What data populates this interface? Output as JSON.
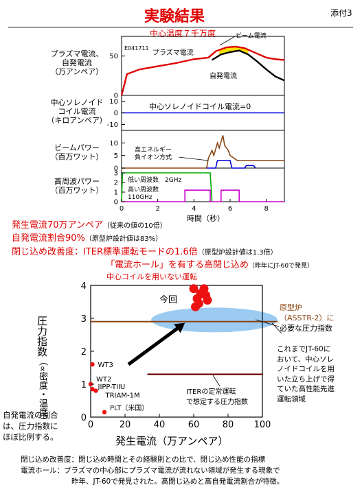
{
  "page": {
    "title": "実験結果",
    "attachment": "添付3"
  },
  "top_figure": {
    "header": "中心温度７千万度",
    "shot_id": "E041711",
    "panel1_ylabel": [
      "プラズマ電流、",
      "自発電流",
      "（万アンペア）"
    ],
    "panel1_curve_labels": {
      "plasma": "プラズマ電流",
      "beam": "ビーム電流",
      "bootstrap": "自発電流"
    },
    "panel2_ylabel": [
      "中心ソレノイド",
      "コイル電流",
      "（キロアンペア）"
    ],
    "panel2_text": "中心ソレノイドコイル電流=0",
    "panel3_ylabel": [
      "ビームパワー",
      "（百万ワット）"
    ],
    "panel3_labels": [
      "高エネルギー",
      "負イオン方式"
    ],
    "panel4_ylabel": [
      "高周波パワー",
      "（百万ワット）"
    ],
    "panel4_labels": [
      "低い周波数　2GHz",
      "高い周波数",
      "110GHz"
    ],
    "xlabel": "時間（秒）",
    "chart_data": {
      "type": "line",
      "x_ticks": [
        0,
        2,
        4,
        6,
        8
      ],
      "xlim": [
        0,
        9
      ],
      "panels": [
        {
          "name": "プラズマ電流、自発電流",
          "yticks": [
            0,
            50
          ],
          "ylim": [
            0,
            75
          ],
          "series": [
            {
              "name": "プラズマ電流",
              "color": "#e00000",
              "x": [
                0,
                0.3,
                1,
                2,
                3,
                4,
                4.8,
                5.2,
                5.8,
                6.3,
                6.8,
                7.4,
                8,
                8.5,
                9
              ],
              "y": [
                0,
                27,
                33,
                37,
                41,
                46,
                48,
                56,
                61,
                62,
                60,
                54,
                48,
                46,
                45
              ]
            },
            {
              "name": "自発電流",
              "color": "#000000",
              "x": [
                5,
                5.5,
                6,
                6.5,
                7,
                7.5,
                8,
                8.5,
                9
              ],
              "y": [
                45,
                52,
                55,
                57,
                52,
                43,
                33,
                24,
                19
              ]
            }
          ]
        },
        {
          "name": "中心ソレノイドコイル電流",
          "yticks": [
            -10,
            0,
            10
          ],
          "ylim": [
            -15,
            15
          ],
          "series": [
            {
              "name": "中心ソレノイドコイル電流",
              "color": "#0000dd",
              "x": [
                0,
                9
              ],
              "y": [
                0,
                0
              ]
            }
          ]
        },
        {
          "name": "ビームパワー",
          "yticks": [
            0,
            5,
            10
          ],
          "ylim": [
            0,
            15
          ],
          "series": [
            {
              "name": "ビームパワー",
              "color": "#8b4513",
              "x": [
                0,
                4.7,
                4.8,
                5.0,
                5.1,
                5.3,
                5.4,
                5.6,
                5.7,
                5.9,
                6.0,
                6.2,
                6.4,
                6.6,
                9
              ],
              "y": [
                0,
                0,
                4,
                7,
                5,
                10,
                8,
                13,
                9,
                7,
                5,
                4,
                3,
                3,
                3
              ]
            },
            {
              "name": "負イオン方式",
              "color": "#0000dd",
              "x": [
                4.7,
                5.2,
                5.3,
                6.0,
                6.1,
                6.8,
                6.9,
                7.3,
                7.4
              ],
              "y": [
                0,
                0,
                3,
                3,
                0,
                0,
                1,
                1,
                0
              ]
            }
          ]
        },
        {
          "name": "高周波パワー",
          "yticks": [
            0,
            1,
            2,
            3
          ],
          "ylim": [
            0,
            3.5
          ],
          "series": [
            {
              "name": "低い周波数 2GHz",
              "color": "#00aa00",
              "x": [
                0,
                0.05,
                4.9,
                5.0
              ],
              "y": [
                0,
                3,
                3,
                0
              ]
            },
            {
              "name": "高い周波数 110GHz",
              "color": "#cc00cc",
              "x": [
                0,
                3.5,
                3.5,
                4.9,
                4.9,
                5.5,
                5.5,
                6.5,
                6.5,
                9
              ],
              "y": [
                0,
                0,
                1.2,
                1.2,
                0,
                0,
                1.2,
                1.2,
                0,
                0
              ]
            }
          ]
        }
      ]
    }
  },
  "summary": {
    "line1_main": "発生電流70万アンペア",
    "line1_note": "（従来の値の10倍）",
    "line2_main": "自発電流割合90%",
    "line2_note": "（原型炉設計値は83%）",
    "line3_main": "閉じ込め改善度：ITER標準運転モードの1.6倍",
    "line3_note": "（原型炉設計値は1.3倍）",
    "line4_main": "「電流ホール」を有する高閉じ込め",
    "line4_note": "（昨年にJT-60で発見）",
    "line5": "中心コイルを用いない運転"
  },
  "scatter": {
    "ylabel": "圧力指数",
    "ylabel_sub": "（∝密度・温度）",
    "xlabel": "発生電流（万アンペア）",
    "label_now": "今回",
    "prototype_line1": "原型炉",
    "prototype_line2": "（ASSTR-2）に",
    "prototype_line3": "必要な圧力指数",
    "iter_label_1": "ITERの定常運転",
    "iter_label_2": "で想定する圧力指数",
    "jt60_note": [
      "これまでJT-60に",
      "おいて、中心ソレ",
      "ノイドコイルを用",
      "いた立ち上げで得",
      "ていた高性能先進",
      "運転領域"
    ],
    "chart_data": {
      "type": "scatter",
      "xlim": [
        0,
        100
      ],
      "ylim": [
        0,
        4
      ],
      "xticks": [
        0,
        20,
        40,
        60,
        80,
        100
      ],
      "yticks": [
        0,
        1,
        2,
        3,
        4
      ],
      "points_current": {
        "x": [
          60,
          62,
          64,
          66,
          67,
          68,
          61,
          63
        ],
        "y": [
          3.9,
          3.6,
          3.75,
          3.9,
          3.7,
          3.55,
          3.35,
          3.45
        ]
      },
      "points_others": [
        {
          "name": "WT3",
          "x": 1,
          "y": 1.6
        },
        {
          "name": "WT2",
          "x": 0,
          "y": 1.0
        },
        {
          "name": "JIPP-TIIU",
          "x": 1,
          "y": 0.85
        },
        {
          "name": "TRIAM-1M",
          "x": 3,
          "y": 0.8
        },
        {
          "name": "PLT（米国）",
          "x": 8,
          "y": 0.15
        }
      ],
      "prototype_level": 2.9,
      "iter_level": 1.3,
      "iter_xrange": [
        33,
        100
      ]
    }
  },
  "side_note": [
    "自発電流の割合",
    "は、圧力指数に",
    "ほぼ比例する。"
  ],
  "footer": {
    "term1": "閉じ込め改善度：閉じ込め時間とその経験則との比で、閉じ込め性能の指標",
    "term2a": "電流ホール：プラズマの中心部にプラズマ電流が流れない領域が発生する現象で",
    "term2b": "昨年、JT-60で発見された。高閉じ込めと高自発電流割合が特徴。"
  }
}
